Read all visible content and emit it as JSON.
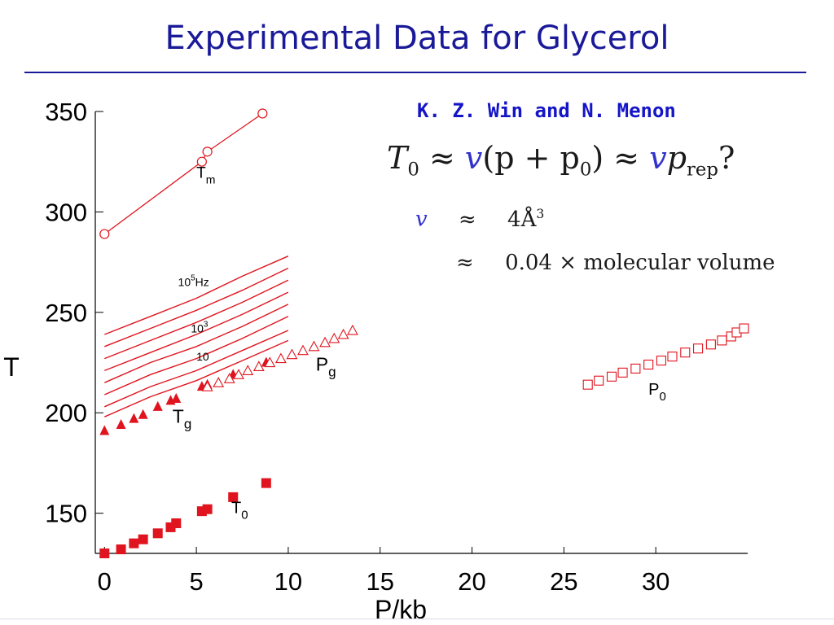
{
  "slide": {
    "title": "Experimental Data for Glycerol",
    "authors": "K. Z. Win and N. Menon"
  },
  "equations": {
    "main": {
      "lhs": "T",
      "lhs_sub": "0",
      "approx": "≈",
      "v": "v",
      "paren": "(p + p",
      "p0_sub": "0",
      "close": ")",
      "p": "p",
      "rep_sub": "rep",
      "q": "?"
    },
    "line1": {
      "symbol": "v",
      "approx": "≈",
      "value": "4Å",
      "exp": "3"
    },
    "line2": {
      "approx": "≈",
      "value": "0.04 × molecular volume"
    }
  },
  "chart_data": {
    "type": "scatter",
    "xlabel": "P/kb",
    "ylabel": "T",
    "xlim": [
      -0.5,
      35
    ],
    "ylim": [
      130,
      350
    ],
    "xticks": [
      0,
      5,
      10,
      15,
      20,
      25,
      30
    ],
    "yticks": [
      150,
      200,
      250,
      300,
      350
    ],
    "colors": {
      "series": "#e0141e",
      "axis": "#000000"
    },
    "series": [
      {
        "name": "T_m",
        "label": "T",
        "label_sub": "m",
        "marker": "open-circle",
        "line": true,
        "points": [
          [
            0,
            289
          ],
          [
            5.3,
            325
          ],
          [
            5.6,
            330
          ],
          [
            8.6,
            349
          ]
        ]
      },
      {
        "name": "T_g",
        "label": "T",
        "label_sub": "g",
        "marker": "filled-triangle",
        "line": false,
        "points": [
          [
            0,
            191
          ],
          [
            0.9,
            194
          ],
          [
            1.6,
            197
          ],
          [
            2.1,
            199
          ],
          [
            2.9,
            203
          ],
          [
            3.6,
            206
          ],
          [
            3.9,
            207
          ],
          [
            5.3,
            213
          ],
          [
            5.6,
            214
          ],
          [
            7.0,
            219
          ],
          [
            8.8,
            225
          ]
        ]
      },
      {
        "name": "P_g",
        "label": "P",
        "label_sub": "g",
        "marker": "open-triangle",
        "line": false,
        "points": [
          [
            5.6,
            213
          ],
          [
            6.2,
            215
          ],
          [
            6.8,
            217
          ],
          [
            7.3,
            219
          ],
          [
            7.8,
            221
          ],
          [
            8.4,
            223
          ],
          [
            9.0,
            225
          ],
          [
            9.6,
            227
          ],
          [
            10.2,
            229
          ],
          [
            10.8,
            231
          ],
          [
            11.4,
            233
          ],
          [
            12.0,
            235
          ],
          [
            12.5,
            237
          ],
          [
            13.0,
            239
          ],
          [
            13.5,
            241
          ]
        ]
      },
      {
        "name": "T_0",
        "label": "T",
        "label_sub": "0",
        "marker": "filled-square",
        "line": false,
        "points": [
          [
            0,
            130
          ],
          [
            0.9,
            132
          ],
          [
            1.6,
            135
          ],
          [
            2.1,
            137
          ],
          [
            2.9,
            140
          ],
          [
            3.6,
            143
          ],
          [
            3.9,
            145
          ],
          [
            5.3,
            151
          ],
          [
            5.6,
            152
          ],
          [
            7.0,
            158
          ],
          [
            8.8,
            165
          ]
        ]
      },
      {
        "name": "P_0",
        "label": "P",
        "label_sub": "0",
        "marker": "open-square",
        "line": false,
        "points": [
          [
            26.3,
            214
          ],
          [
            26.9,
            216
          ],
          [
            27.6,
            218
          ],
          [
            28.2,
            220
          ],
          [
            28.9,
            222
          ],
          [
            29.6,
            224
          ],
          [
            30.3,
            226
          ],
          [
            30.9,
            228
          ],
          [
            31.6,
            230
          ],
          [
            32.3,
            232
          ],
          [
            33.0,
            234
          ],
          [
            33.6,
            236
          ],
          [
            34.1,
            238
          ],
          [
            34.4,
            240
          ],
          [
            34.8,
            242
          ]
        ]
      }
    ],
    "frequency_curves": [
      {
        "points": [
          [
            0,
            239
          ],
          [
            2.5,
            248
          ],
          [
            5,
            257
          ],
          [
            7.5,
            268
          ],
          [
            10,
            278
          ]
        ]
      },
      {
        "points": [
          [
            0,
            233
          ],
          [
            2.5,
            242
          ],
          [
            5,
            251
          ],
          [
            7.5,
            261
          ],
          [
            10,
            272
          ]
        ]
      },
      {
        "points": [
          [
            0,
            227
          ],
          [
            2.5,
            236
          ],
          [
            5,
            245
          ],
          [
            7.5,
            255
          ],
          [
            10,
            266
          ]
        ]
      },
      {
        "points": [
          [
            0,
            221
          ],
          [
            2.5,
            230
          ],
          [
            5,
            239
          ],
          [
            7.5,
            249
          ],
          [
            10,
            260
          ]
        ]
      },
      {
        "points": [
          [
            0,
            215
          ],
          [
            2.5,
            225
          ],
          [
            5,
            233
          ],
          [
            7.5,
            243
          ],
          [
            10,
            254
          ]
        ]
      },
      {
        "points": [
          [
            0,
            209
          ],
          [
            2.5,
            219
          ],
          [
            5,
            227
          ],
          [
            7.5,
            237
          ],
          [
            10,
            248
          ]
        ]
      },
      {
        "points": [
          [
            0,
            203
          ],
          [
            2.5,
            213
          ],
          [
            5,
            221
          ],
          [
            7.5,
            231
          ],
          [
            10,
            241
          ]
        ]
      },
      {
        "points": [
          [
            0,
            198
          ],
          [
            2.5,
            208
          ],
          [
            5,
            216
          ],
          [
            7.5,
            226
          ],
          [
            10,
            236
          ]
        ]
      }
    ],
    "annotations": [
      {
        "base": "10",
        "sup": "5",
        "suffix": "Hz",
        "x": 4.0,
        "y": 263
      },
      {
        "base": "10",
        "sup": "3",
        "suffix": "",
        "x": 4.7,
        "y": 240
      },
      {
        "base": "10",
        "sup": "",
        "suffix": "",
        "x": 5.0,
        "y": 226
      }
    ],
    "series_labels": [
      {
        "series": "T_m",
        "x": 5.0,
        "y": 317
      },
      {
        "series": "P_g",
        "x": 11.5,
        "y": 221
      },
      {
        "series": "T_g",
        "x": 3.7,
        "y": 195
      },
      {
        "series": "T_0",
        "x": 6.9,
        "y": 150
      },
      {
        "series": "P_0",
        "x": 29.6,
        "y": 209
      }
    ]
  }
}
